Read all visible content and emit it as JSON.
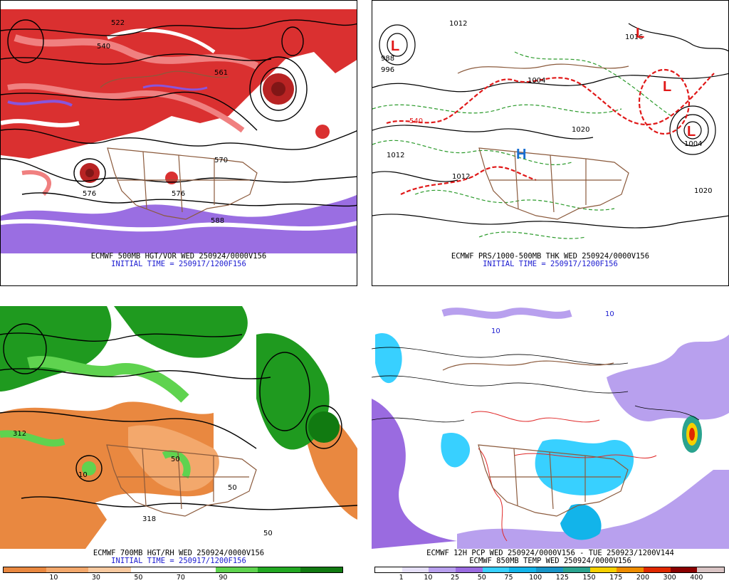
{
  "panels": {
    "top_left": {
      "caption": "ECMWF 500MB HGT/VOR WED 250924/0000V156",
      "init": "INITIAL TIME = 250917/1200F156",
      "contour_labels": [
        "522",
        "540",
        "561",
        "570",
        "576",
        "576",
        "588"
      ]
    },
    "top_right": {
      "caption": "ECMWF PRS/1000-500MB THK WED 250924/0000V156",
      "init": "INITIAL TIME = 250917/1200F156",
      "contour_labels": [
        "1012",
        "1004",
        "1020",
        "1012",
        "1004",
        "1020",
        "540",
        "1016",
        "988",
        "996",
        "1012"
      ],
      "low_symbol": "L",
      "high_symbol": "H"
    },
    "bottom_left": {
      "caption": "ECMWF 700MB HGT/RH WED 250924/0000V156",
      "init": "INITIAL TIME = 250917/1200F156",
      "contour_labels": [
        "312",
        "50",
        "50",
        "10",
        "318",
        "50"
      ],
      "colorbar_ticks": [
        "10",
        "30",
        "50",
        "70",
        "90"
      ],
      "colorbar_colors": [
        "#e98840",
        "#f3a86c",
        "#f8c9a0",
        "#ffffff",
        "#ffffff",
        "#5fd34f",
        "#22a822",
        "#117a11"
      ]
    },
    "bottom_right": {
      "caption": "ECMWF 12H PCP WED 250924/0000V156 - TUE 250923/1200V144",
      "caption2": "ECMWF 850MB TEMP WED 250924/0000V156",
      "contour_labels": [
        "10",
        "10"
      ],
      "colorbar_ticks": [
        "1",
        "10",
        "25",
        "50",
        "75",
        "100",
        "125",
        "150",
        "175",
        "200",
        "300",
        "400"
      ],
      "colorbar_colors": [
        "#ffffff",
        "#e6e0f8",
        "#b8a0ee",
        "#9a6be0",
        "#38d0ff",
        "#12b4ea",
        "#1795c8",
        "#2aa38f",
        "#f5d000",
        "#ee8c00",
        "#e02800",
        "#8a0000",
        "#d9c4c4"
      ]
    }
  },
  "colors": {
    "vorticity": "#d92525",
    "vorticity_light": "#f07a7a",
    "negative_vort": "#8855dd",
    "map_borders": "#8b5a3c",
    "thickness": "#e01818",
    "thickness_cold": "#2a9a2a",
    "rh_dry": "#e98840",
    "rh_moist": "#1f9a1f",
    "init_text": "#1a1ad0"
  }
}
